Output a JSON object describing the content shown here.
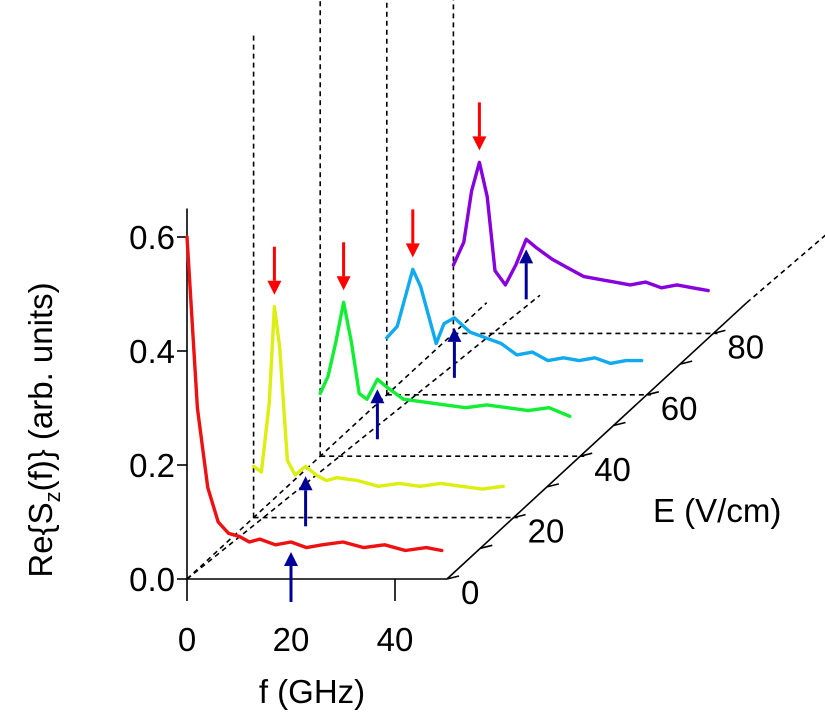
{
  "chart_data": {
    "type": "line",
    "projection": "3d-waterfall",
    "x_axis": {
      "label": "f (GHz)",
      "range": [
        0,
        50
      ],
      "ticks": [
        0,
        20,
        40
      ]
    },
    "y_axis": {
      "label_parts": [
        "Re{S",
        "z",
        "(f)} (arb. units)"
      ],
      "range": [
        0,
        0.65
      ],
      "ticks": [
        "0.0",
        "0.2",
        "0.4",
        "0.6"
      ],
      "tick_values": [
        0,
        0.2,
        0.4,
        0.6
      ]
    },
    "depth_axis": {
      "label": "E (V/cm)",
      "range": [
        0,
        90
      ],
      "ticks": [
        0,
        20,
        40,
        60,
        80
      ]
    },
    "colors": {
      "series": [
        "#ee1111",
        "#ddee11",
        "#11ee33",
        "#11aaee",
        "#8800dd"
      ],
      "red_arrow": "#ff0000",
      "blue_arrow": "#000099"
    },
    "series": [
      {
        "E": 0,
        "x": [
          0,
          2,
          4,
          6,
          8,
          10,
          12,
          14,
          17,
          20,
          23,
          26,
          30,
          34,
          38,
          42,
          46,
          49
        ],
        "y": [
          0.6,
          0.3,
          0.16,
          0.1,
          0.08,
          0.075,
          0.065,
          0.07,
          0.06,
          0.065,
          0.055,
          0.06,
          0.065,
          0.055,
          0.06,
          0.05,
          0.055,
          0.05
        ]
      },
      {
        "E": 20,
        "x": [
          0,
          1.5,
          3,
          4,
          5,
          6.5,
          8,
          10,
          12,
          14,
          16,
          20,
          24,
          28,
          32,
          36,
          40,
          44,
          48
        ],
        "y": [
          0.09,
          0.08,
          0.2,
          0.37,
          0.3,
          0.1,
          0.075,
          0.09,
          0.075,
          0.065,
          0.07,
          0.065,
          0.055,
          0.06,
          0.055,
          0.06,
          0.055,
          0.05,
          0.055
        ]
      },
      {
        "E": 40,
        "x": [
          0,
          1.5,
          3,
          4.5,
          6,
          7.5,
          9,
          11,
          13,
          16,
          20,
          24,
          28,
          32,
          36,
          40,
          44,
          48
        ],
        "y": [
          0.11,
          0.14,
          0.2,
          0.27,
          0.2,
          0.11,
          0.1,
          0.135,
          0.12,
          0.1,
          0.095,
          0.09,
          0.085,
          0.09,
          0.085,
          0.08,
          0.085,
          0.07
        ]
      },
      {
        "E": 60,
        "x": [
          0,
          2,
          3.5,
          5,
          6.5,
          8,
          9.5,
          11,
          13,
          16,
          19,
          22,
          25,
          28,
          31,
          34,
          37,
          40,
          43,
          46,
          49
        ],
        "y": [
          0.1,
          0.12,
          0.17,
          0.22,
          0.19,
          0.14,
          0.09,
          0.125,
          0.135,
          0.11,
          0.1,
          0.09,
          0.07,
          0.075,
          0.06,
          0.065,
          0.06,
          0.065,
          0.055,
          0.06,
          0.06
        ]
      },
      {
        "E": 80,
        "x": [
          0,
          2,
          3.5,
          5,
          6.5,
          8,
          10,
          12,
          14,
          16,
          19,
          22,
          25,
          28,
          31,
          34,
          37,
          40,
          43,
          46,
          49
        ],
        "y": [
          0.12,
          0.16,
          0.25,
          0.3,
          0.24,
          0.11,
          0.085,
          0.12,
          0.165,
          0.15,
          0.13,
          0.115,
          0.1,
          0.095,
          0.09,
          0.085,
          0.09,
          0.08,
          0.085,
          0.08,
          0.075
        ]
      }
    ],
    "red_arrows": [
      {
        "E": 20,
        "f": 4,
        "y": 0.37
      },
      {
        "E": 40,
        "f": 4.5,
        "y": 0.27
      },
      {
        "E": 60,
        "f": 5,
        "y": 0.22
      },
      {
        "E": 80,
        "f": 5,
        "y": 0.3
      }
    ],
    "blue_arrows": [
      {
        "E": 0,
        "f": 20,
        "y": 0.065
      },
      {
        "E": 20,
        "f": 10,
        "y": 0.09
      },
      {
        "E": 40,
        "f": 11,
        "y": 0.135
      },
      {
        "E": 60,
        "f": 13,
        "y": 0.135
      },
      {
        "E": 80,
        "f": 14,
        "y": 0.165
      }
    ]
  }
}
